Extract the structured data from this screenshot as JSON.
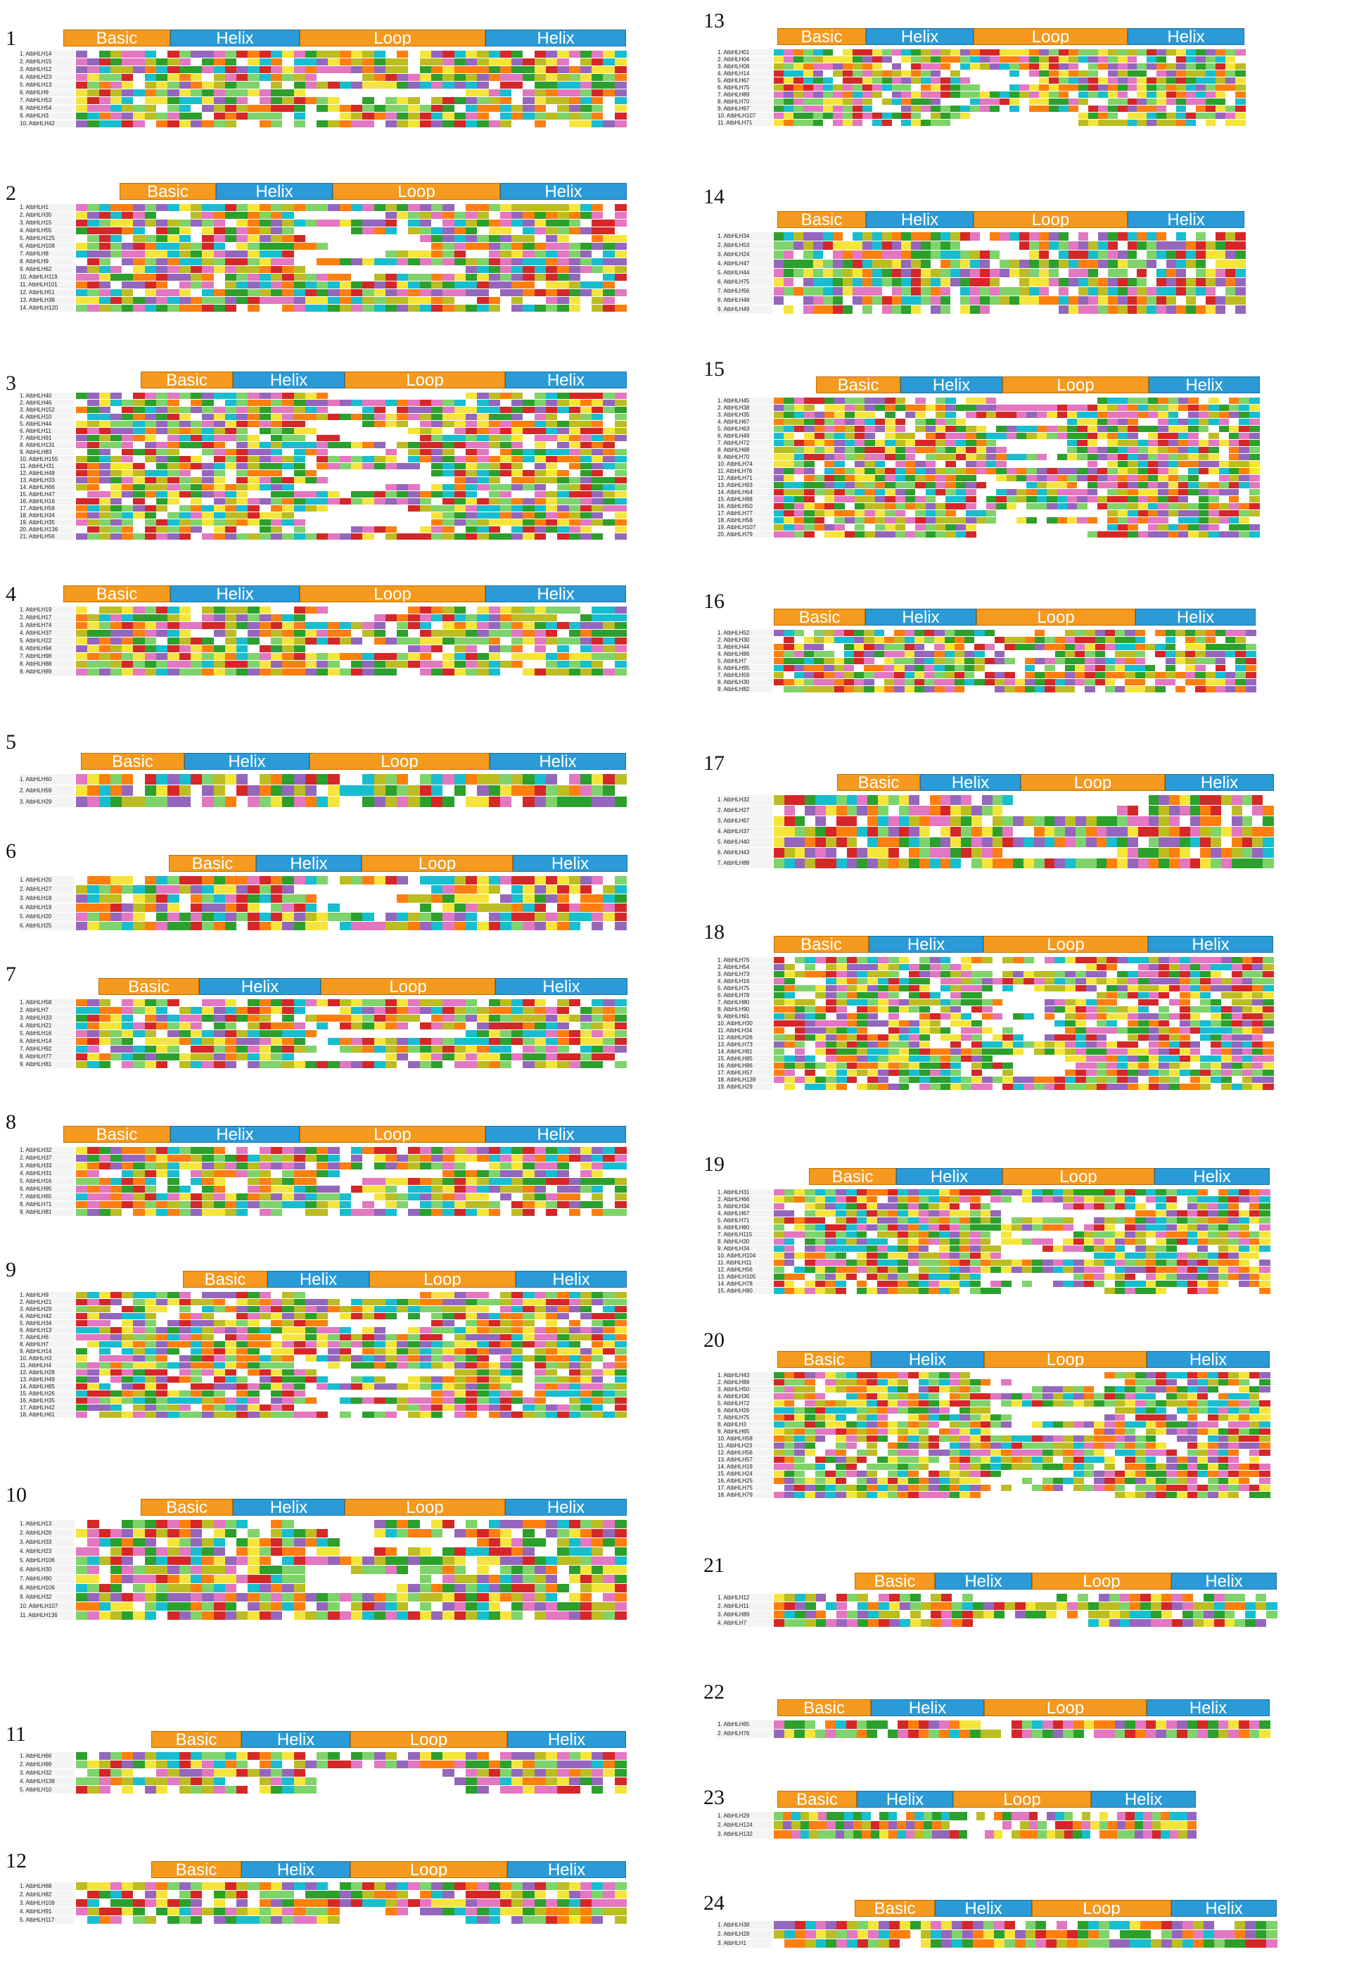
{
  "colors": {
    "basic": "#f59a1e",
    "helix": "#2b9bd7",
    "loop": "#f59a1e",
    "residue_palette": [
      "#2ca02c",
      "#f5e53a",
      "#e377c2",
      "#17becf",
      "#ff7f0e",
      "#9467bd",
      "#d62728",
      "#bcbd22",
      "#ffffff",
      "#7fd36b"
    ]
  },
  "panels": [
    {
      "number": "1",
      "domains": [
        "Basic",
        "Helix",
        "Loop",
        "Helix"
      ],
      "sequences": [
        "1. AtbHLH14",
        "2. AtbHLH15",
        "3. AtbHLH12",
        "4. AtbHLH23",
        "5. AtbHLH13",
        "6. AtbHLH9",
        "7. AtbHLH53",
        "8. AtbHLH54",
        "9. AtbHLH3",
        "10. AtbHLH42"
      ]
    },
    {
      "number": "2",
      "domains": [
        "Basic",
        "Helix",
        "Loop",
        "Helix"
      ],
      "sequences": [
        "1. AtbHLH1",
        "2. AtbHLH35",
        "3. AtbHLH15",
        "4. AtbHLH55",
        "5. AtbHLH125",
        "6. AtbHLH108",
        "7. AtbHLH8",
        "8. AtbHLH9",
        "9. AtbHLH62",
        "10. AtbHLH119",
        "11. AtbHLH101",
        "12. AtbHLH51",
        "13. AtbHLH38",
        "14. AtbHLH120"
      ]
    },
    {
      "number": "3",
      "domains": [
        "Basic",
        "Helix",
        "Loop",
        "Helix"
      ],
      "sequences": [
        "1. AtbHLH40",
        "2. AtbHLH46",
        "3. AtbHLH152",
        "4. AtbHLH10",
        "5. AtbHLH44",
        "6. AtbHLH11",
        "7. AtbHLH91",
        "8. AtbHLH131",
        "9. AtbHLH83",
        "10. AtbHLH155",
        "11. AtbHLH31",
        "12. AtbHLH48",
        "13. AtbHLH33",
        "14. AtbHLH66",
        "15. AtbHLH47",
        "16. AtbHLH16",
        "17. AtbHLH58",
        "18. AtbHLH34",
        "19. AtbHLH35",
        "20. AtbHLH136",
        "21. AtbHLH56"
      ]
    },
    {
      "number": "4",
      "domains": [
        "Basic",
        "Helix",
        "Loop",
        "Helix"
      ],
      "sequences": [
        "1. AtbHLH19",
        "2. AtbHLH17",
        "3. AtbHLH74",
        "4. AtbHLH37",
        "5. AtbHLH22",
        "6. AtbHLH94",
        "7. AtbHLH98",
        "8. AtbHLH88",
        "9. AtbHLH89"
      ]
    },
    {
      "number": "5",
      "domains": [
        "Basic",
        "Helix",
        "Loop",
        "Helix"
      ],
      "sequences": [
        "1. AtbHLH60",
        "2. AtbHLH59",
        "3. AtbHLH29"
      ]
    },
    {
      "number": "6",
      "domains": [
        "Basic",
        "Helix",
        "Loop",
        "Helix"
      ],
      "sequences": [
        "1. AtbHLH20",
        "2. AtbHLH27",
        "3. AtbHLH18",
        "4. AtbHLH19",
        "5. AtbHLH20",
        "6. AtbHLH25"
      ]
    },
    {
      "number": "7",
      "domains": [
        "Basic",
        "Helix",
        "Loop",
        "Helix"
      ],
      "sequences": [
        "1. AtbHLH58",
        "2. AtbHLH7",
        "3. AtbHLH33",
        "4. AtbHLH21",
        "5. AtbHLH16",
        "6. AtbHLH14",
        "7. AtbHLH92",
        "8. AtbHLH77",
        "9. AtbHLH81"
      ]
    },
    {
      "number": "8",
      "domains": [
        "Basic",
        "Helix",
        "Loop",
        "Helix"
      ],
      "sequences": [
        "1. AtbHLH32",
        "2. AtbHLH37",
        "3. AtbHLH33",
        "4. AtbHLH31",
        "5. AtbHLH16",
        "6. AtbHLH95",
        "7. AtbHLH65",
        "8. AtbHLH71",
        "9. AtbHLH81"
      ]
    },
    {
      "number": "9",
      "domains": [
        "Basic",
        "Helix",
        "Loop",
        "Helix"
      ],
      "sequences": [
        "1. AtbHLH9",
        "2. AtbHLH21",
        "3. AtbHLH29",
        "4. AtbHLH42",
        "5. AtbHLH34",
        "6. AtbHLH13",
        "7. AtbHLH6",
        "8. AtbHLH7",
        "9. AtbHLH14",
        "10. AtbHLH3",
        "11. AtbHLH4",
        "12. AtbHLH28",
        "13. AtbHLH49",
        "14. AtbHLH85",
        "15. AtbHLH26",
        "16. AtbHLH35",
        "17. AtbHLH42",
        "18. AtbHLH61"
      ]
    },
    {
      "number": "10",
      "domains": [
        "Basic",
        "Helix",
        "Loop",
        "Helix"
      ],
      "sequences": [
        "1. AtbHLH13",
        "2. AtbHLH26",
        "3. AtbHLH33",
        "4. AtbHLH23",
        "5. AtbHLH106",
        "6. AtbHLH30",
        "7. AtbHLH90",
        "8. AtbHLH106",
        "9. AtbHLH32",
        "10. AtbHLH107",
        "11. AtbHLH136"
      ]
    },
    {
      "number": "11",
      "domains": [
        "Basic",
        "Helix",
        "Loop",
        "Helix"
      ],
      "sequences": [
        "1. AtbHLH66",
        "2. AtbHLH99",
        "3. AtbHLH32",
        "4. AtbHLH138",
        "5. AtbHLH10"
      ]
    },
    {
      "number": "12",
      "domains": [
        "Basic",
        "Helix",
        "Loop",
        "Helix"
      ],
      "sequences": [
        "1. AtbHLH68",
        "2. AtbHLH82",
        "3. AtbHLH109",
        "4. AtbHLH91",
        "5. AtbHLH117"
      ]
    },
    {
      "number": "13",
      "domains": [
        "Basic",
        "Helix",
        "Loop",
        "Helix"
      ],
      "sequences": [
        "1. AtbHLH01",
        "2. AtbHLH04",
        "3. AtbHLH08",
        "4. AtbHLH14",
        "5. AtbHLH67",
        "6. AtbHLH75",
        "7. AtbHLH89",
        "8. AtbHLH70",
        "9. AtbHLH97",
        "10. AtbHLH107",
        "11. AtbHLH71"
      ]
    },
    {
      "number": "14",
      "domains": [
        "Basic",
        "Helix",
        "Loop",
        "Helix"
      ],
      "sequences": [
        "1. AtbHLH34",
        "2. AtbHLH53",
        "3. AtbHLH24",
        "4. AtbHLH47",
        "5. AtbHLH44",
        "6. AtbHLH75",
        "7. AtbHLH56",
        "8. AtbHLH48",
        "9. AtbHLH49"
      ]
    },
    {
      "number": "15",
      "domains": [
        "Basic",
        "Helix",
        "Loop",
        "Helix"
      ],
      "sequences": [
        "1. AtbHLH45",
        "2. AtbHLH38",
        "3. AtbHLH35",
        "4. AtbHLH67",
        "5. AtbHLH63",
        "6. AtbHLH49",
        "7. AtbHLH72",
        "8. AtbHLH68",
        "9. AtbHLH70",
        "10. AtbHLH74",
        "11. AtbHLH76",
        "12. AtbHLH71",
        "13. AtbHLH93",
        "14. AtbHLH64",
        "15. AtbHLH88",
        "16. AtbHLH50",
        "17. AtbHLH77",
        "18. AtbHLH58",
        "19. AtbHLH107",
        "20. AtbHLH79"
      ]
    },
    {
      "number": "16",
      "domains": [
        "Basic",
        "Helix",
        "Loop",
        "Helix"
      ],
      "sequences": [
        "1. AtbHLH52",
        "2. AtbHLH30",
        "3. AtbHLH44",
        "4. AtbHLH86",
        "5. AtbHLH7",
        "6. AtbHLH95",
        "7. AtbHLH59",
        "8. AtbHLH30",
        "9. AtbHLH82"
      ]
    },
    {
      "number": "17",
      "domains": [
        "Basic",
        "Helix",
        "Loop",
        "Helix"
      ],
      "sequences": [
        "1. AtbHLH32",
        "2. AtbHLH27",
        "3. AtbHLH67",
        "4. AtbHLH37",
        "5. AtbHLH40",
        "6. AtbHLH43",
        "7. AtbHLH88"
      ]
    },
    {
      "number": "18",
      "domains": [
        "Basic",
        "Helix",
        "Loop",
        "Helix"
      ],
      "sequences": [
        "1. AtbHLH76",
        "2. AtbHLH54",
        "3. AtbHLH73",
        "4. AtbHLH16",
        "5. AtbHLH75",
        "6. AtbHLH78",
        "7. AtbHLH80",
        "8. AtbHLH90",
        "9. AtbHLH91",
        "10. AtbHLH30",
        "11. AtbHLH34",
        "12. AtbHLH26",
        "13. AtbHLH73",
        "14. AtbHLH81",
        "15. AtbHLH85",
        "16. AtbHLH86",
        "17. AtbHLH57",
        "18. AtbHLH139",
        "19. AtbHLH29"
      ]
    },
    {
      "number": "19",
      "domains": [
        "Basic",
        "Helix",
        "Loop",
        "Helix"
      ],
      "sequences": [
        "1. AtbHLH31",
        "2. AtbHLH66",
        "3. AtbHLH34",
        "4. AtbHLH67",
        "5. AtbHLH71",
        "6. AtbHLH80",
        "7. AtbHLH115",
        "8. AtbHLH30",
        "9. AtbHLH34",
        "10. AtbHLH104",
        "11. AtbHLH11",
        "12. AtbHLH56",
        "13. AtbHLH105",
        "14. AtbHLH78",
        "15. AtbHLH80"
      ]
    },
    {
      "number": "20",
      "domains": [
        "Basic",
        "Helix",
        "Loop",
        "Helix"
      ],
      "sequences": [
        "1. AtbHLH43",
        "2. AtbHLH89",
        "3. AtbHLH50",
        "4. AtbHLH36",
        "5. AtbHLH72",
        "6. AtbHLH26",
        "7. AtbHLH75",
        "8. AtbHLH3",
        "9. AtbHLH65",
        "10. AtbHLH58",
        "11. AtbHLH23",
        "12. AtbHLH56",
        "13. AtbHLH57",
        "14. AtbHLH19",
        "15. AtbHLH24",
        "16. AtbHLH25",
        "17. AtbHLH75",
        "18. AtbHLH79"
      ]
    },
    {
      "number": "21",
      "domains": [
        "Basic",
        "Helix",
        "Loop",
        "Helix"
      ],
      "sequences": [
        "1. AtbHLH12",
        "2. AtbHLH11",
        "3. AtbHLH89",
        "4. AtbHLH7"
      ]
    },
    {
      "number": "22",
      "domains": [
        "Basic",
        "Helix",
        "Loop",
        "Helix"
      ],
      "sequences": [
        "1. AtbHLH65",
        "2. AtbHLH76"
      ]
    },
    {
      "number": "23",
      "domains": [
        "Basic",
        "Helix",
        "Loop",
        "Helix"
      ],
      "sequences": [
        "1. AtbHLH29",
        "2. AtbHLH124",
        "3. AtbHLH132"
      ]
    },
    {
      "number": "24",
      "domains": [
        "Basic",
        "Helix",
        "Loop",
        "Helix"
      ],
      "sequences": [
        "1. AtbHLH38",
        "2. AtbHLH28",
        "3. AtbHLH1"
      ]
    }
  ]
}
